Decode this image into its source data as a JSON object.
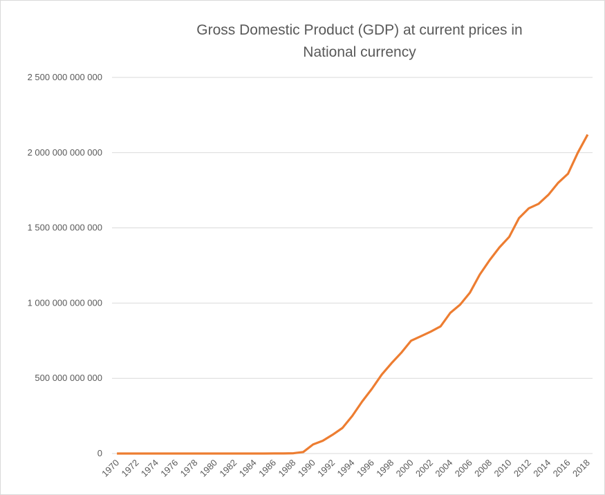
{
  "chart_data": {
    "type": "line",
    "title": "Gross Domestic Product (GDP) at current prices in National currency",
    "categories": [
      "1970",
      null,
      "1972",
      null,
      "1974",
      null,
      "1976",
      null,
      "1978",
      null,
      "1980",
      null,
      "1982",
      null,
      "1984",
      null,
      "1986",
      null,
      "1988",
      null,
      "1990",
      null,
      "1992",
      null,
      "1994",
      null,
      "1996",
      null,
      "1998",
      null,
      "2000",
      null,
      "2002",
      null,
      "2004",
      null,
      "2006",
      null,
      "2008",
      null,
      "2010",
      null,
      "2012",
      null,
      "2014",
      null,
      "2016",
      null,
      "2018"
    ],
    "series": [
      {
        "name": "GDP",
        "color": "#ed7d31",
        "values": [
          100000000,
          100000000,
          100000000,
          100000000,
          100000000,
          100000000,
          100000000,
          100000000,
          100000000,
          100000000,
          100000000,
          100000000,
          100000000,
          200000000,
          200000000,
          200000000,
          300000000,
          500000000,
          2000000000,
          10000000000,
          60000000000,
          85000000000,
          125000000000,
          170000000000,
          250000000000,
          345000000000,
          430000000000,
          525000000000,
          600000000000,
          670000000000,
          750000000000,
          780000000000,
          810000000000,
          845000000000,
          935000000000,
          990000000000,
          1070000000000,
          1190000000000,
          1285000000000,
          1370000000000,
          1440000000000,
          1565000000000,
          1630000000000,
          1660000000000,
          1720000000000,
          1800000000000,
          1860000000000,
          2000000000000,
          2120000000000
        ]
      }
    ],
    "ylim": [
      0,
      2500000000000
    ],
    "yticks": [
      0,
      {
        "value": 500000000000,
        "label": "500 000 000 000"
      },
      {
        "value": 1000000000000,
        "label": "1 000 000 000 000"
      },
      {
        "value": 1500000000000,
        "label": "1 500 000 000 000"
      },
      {
        "value": 2000000000000,
        "label": "2 000 000 000 000"
      },
      {
        "value": 2500000000000,
        "label": "2 500 000 000 000"
      }
    ],
    "grid": true
  }
}
